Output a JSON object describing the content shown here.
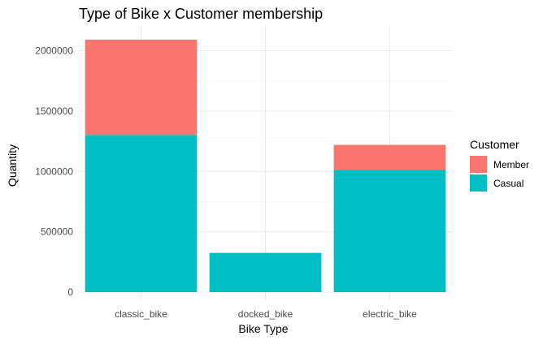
{
  "chart_data": {
    "type": "bar",
    "stacked": true,
    "title": "Type of Bike x Customer membership",
    "xlabel": "Bike Type",
    "ylabel": "Quantity",
    "categories": [
      "classic_bike",
      "docked_bike",
      "electric_bike"
    ],
    "series": [
      {
        "name": "Casual",
        "values": [
          1302000,
          325000,
          1012000
        ],
        "color": "#00BFC4"
      },
      {
        "name": "Member",
        "values": [
          790000,
          0,
          208000
        ],
        "color": "#F8766D"
      }
    ],
    "ylim": [
      0,
      2100000
    ],
    "yticks": [
      0,
      500000,
      1000000,
      1500000,
      2000000
    ],
    "ytick_labels": [
      "0",
      "500000",
      "1000000",
      "1500000",
      "2000000"
    ],
    "grid": true,
    "legend": {
      "title": "Customer",
      "position": "right",
      "entries": [
        {
          "label": "Member",
          "color": "#F8766D"
        },
        {
          "label": "Casual",
          "color": "#00BFC4"
        }
      ]
    }
  }
}
